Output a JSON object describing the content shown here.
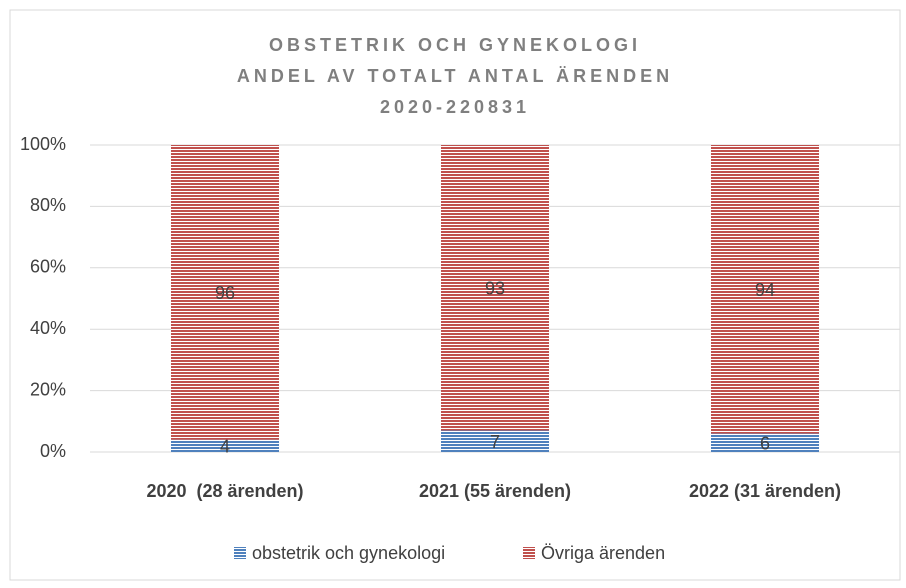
{
  "chart_data": {
    "type": "stacked_bar",
    "title": [
      "OBSTETRIK OCH GYNEKOLOGI",
      "ANDEL AV TOTALT ANTAL ÄRENDEN",
      "2020-220831"
    ],
    "categories": [
      "2020  (28 ärenden)",
      "2021 (55 ärenden)",
      "2022 (31 ärenden)"
    ],
    "series": [
      {
        "name": "obstetrik och gynekologi",
        "color": "#4f81bd",
        "values": [
          4,
          7,
          6
        ]
      },
      {
        "name": "Övriga ärenden",
        "color": "#c0504d",
        "values": [
          96,
          93,
          94
        ]
      }
    ],
    "ylim": [
      0,
      100
    ],
    "yticks": [
      {
        "value": 0,
        "label": "0%"
      },
      {
        "value": 20,
        "label": "20%"
      },
      {
        "value": 40,
        "label": "40%"
      },
      {
        "value": 60,
        "label": "60%"
      },
      {
        "value": 80,
        "label": "80%"
      },
      {
        "value": 100,
        "label": "100%"
      }
    ],
    "grid": true,
    "legend": "bottom"
  }
}
